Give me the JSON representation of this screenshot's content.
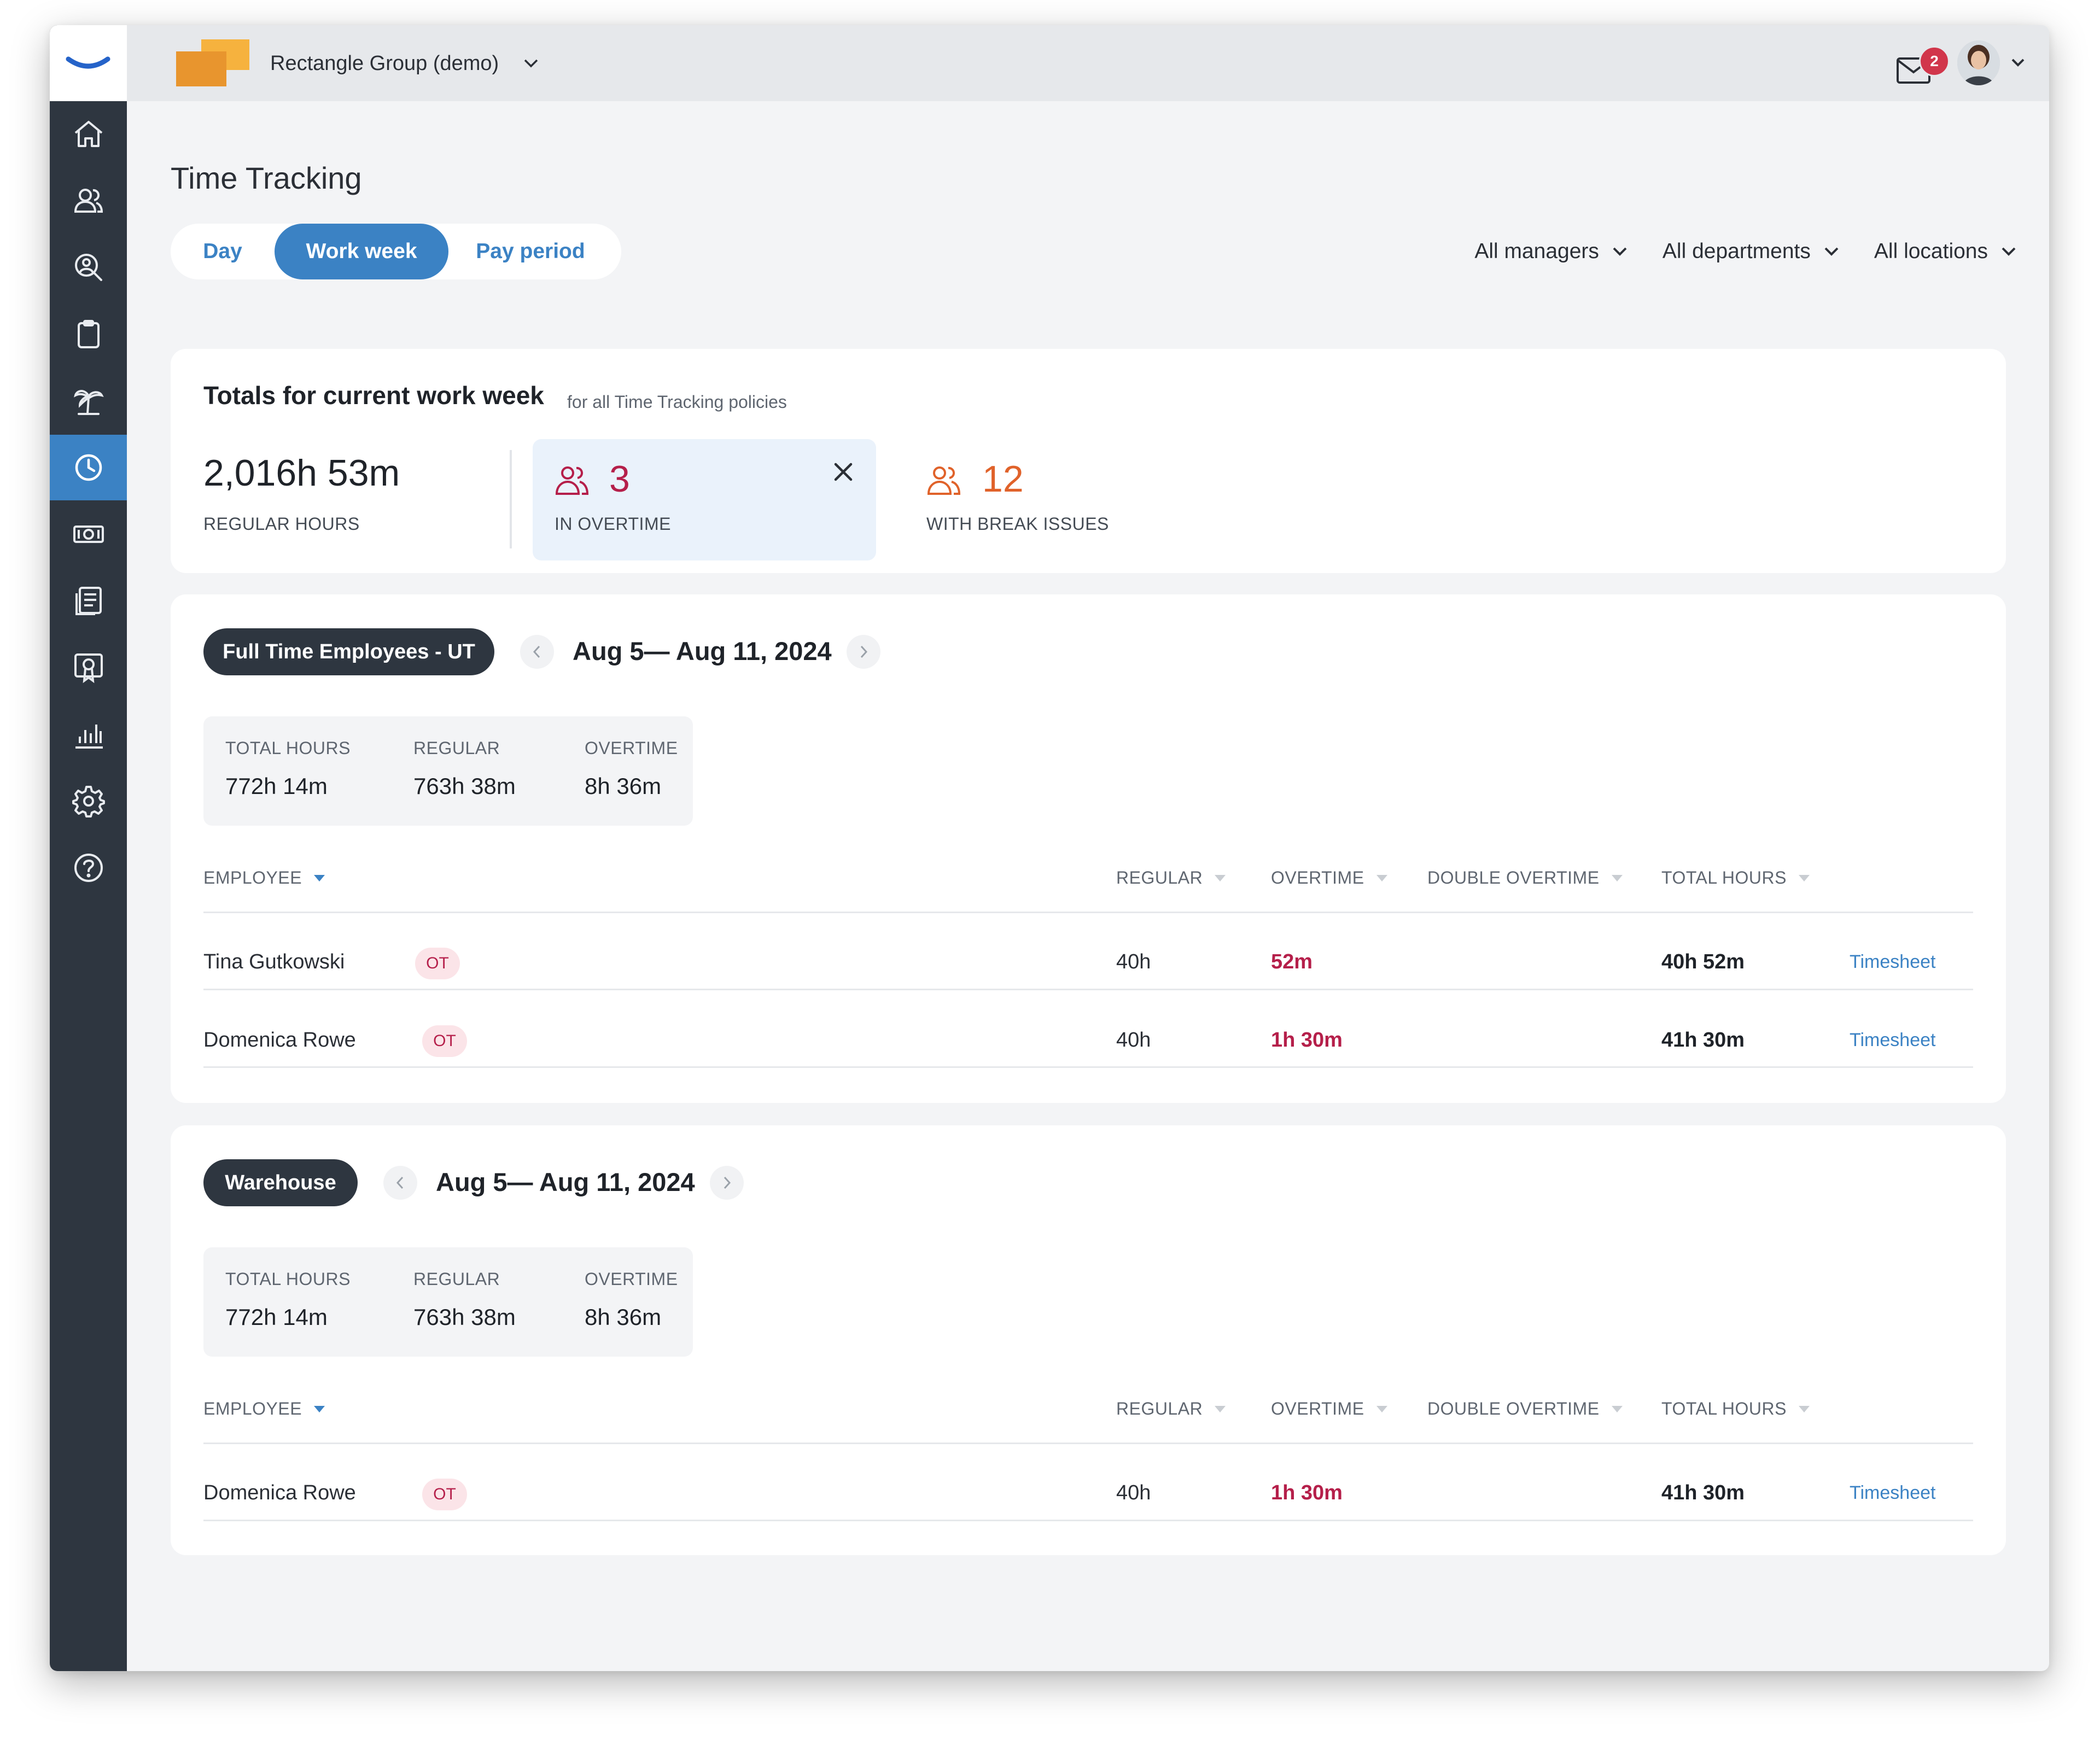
{
  "header": {
    "company_name": "Rectangle Group (demo)",
    "notification_count": "2"
  },
  "sidebar": {
    "items": [
      {
        "icon": "home-icon"
      },
      {
        "icon": "people-icon"
      },
      {
        "icon": "hiring-search-icon"
      },
      {
        "icon": "clipboard-icon"
      },
      {
        "icon": "time-off-palm-icon"
      },
      {
        "icon": "clock-icon",
        "active": true
      },
      {
        "icon": "payroll-money-icon"
      },
      {
        "icon": "documents-icon"
      },
      {
        "icon": "training-certificate-icon"
      },
      {
        "icon": "reports-chart-icon"
      },
      {
        "icon": "settings-gear-icon"
      },
      {
        "icon": "help-icon"
      }
    ]
  },
  "page": {
    "title": "Time Tracking",
    "tabs": [
      {
        "label": "Day",
        "active": false
      },
      {
        "label": "Work week",
        "active": true
      },
      {
        "label": "Pay period",
        "active": false
      }
    ],
    "filters": {
      "managers": "All managers",
      "departments": "All departments",
      "locations": "All locations"
    }
  },
  "totals": {
    "title": "Totals for current work week",
    "subtitle": "for all Time Tracking policies",
    "regular_hours": "2,016h 53m",
    "regular_label": "REGULAR HOURS",
    "overtime_count": "3",
    "overtime_label": "IN OVERTIME",
    "break_issues_count": "12",
    "break_issues_label": "WITH BREAK ISSUES"
  },
  "groups": [
    {
      "name": "Full Time Employees - UT",
      "range": "Aug 5— Aug 11, 2024",
      "summary": {
        "total_label": "TOTAL HOURS",
        "total": "772h 14m",
        "regular_label": "REGULAR",
        "regular": "763h 38m",
        "overtime_label": "OVERTIME",
        "overtime": "8h 36m"
      },
      "columns": {
        "employee": "EMPLOYEE",
        "regular": "REGULAR",
        "overtime": "OVERTIME",
        "double_overtime": "DOUBLE OVERTIME",
        "total_hours": "TOTAL HOURS"
      },
      "rows": [
        {
          "name": "Tina Gutkowski",
          "badge": "OT",
          "regular": "40h",
          "overtime": "52m",
          "total": "40h 52m",
          "link": "Timesheet"
        },
        {
          "name": "Domenica Rowe",
          "badge": "OT",
          "regular": "40h",
          "overtime": "1h 30m",
          "total": "41h 30m",
          "link": "Timesheet"
        }
      ]
    },
    {
      "name": "Warehouse",
      "range": "Aug 5— Aug 11, 2024",
      "summary": {
        "total_label": "TOTAL HOURS",
        "total": "772h 14m",
        "regular_label": "REGULAR",
        "regular": "763h 38m",
        "overtime_label": "OVERTIME",
        "overtime": "8h 36m"
      },
      "columns": {
        "employee": "EMPLOYEE",
        "regular": "REGULAR",
        "overtime": "OVERTIME",
        "double_overtime": "DOUBLE OVERTIME",
        "total_hours": "TOTAL HOURS"
      },
      "rows": [
        {
          "name": "Domenica Rowe",
          "badge": "OT",
          "regular": "40h",
          "overtime": "1h 30m",
          "total": "41h 30m",
          "link": "Timesheet"
        }
      ]
    }
  ],
  "colors": {
    "accent": "#3b82c4",
    "sidebar": "#2e3640",
    "overtime": "#b51f4a",
    "break_issues": "#e0622a",
    "brand_orange": "#f0a040"
  }
}
